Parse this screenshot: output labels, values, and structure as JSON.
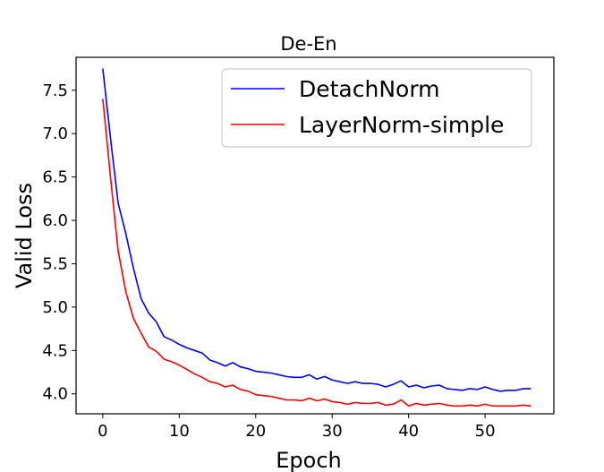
{
  "chart_data": {
    "type": "line",
    "title": "De-En",
    "xlabel": "Epoch",
    "ylabel": "Valid Loss",
    "xlim": [
      -3.5,
      59
    ],
    "ylim": [
      3.77,
      7.88
    ],
    "xticks": [
      0,
      10,
      20,
      30,
      40,
      50
    ],
    "yticks": [
      4.0,
      4.5,
      5.0,
      5.5,
      6.0,
      6.5,
      7.0,
      7.5
    ],
    "grid": false,
    "legend_position": "upper-right",
    "x": [
      0,
      1,
      2,
      3,
      4,
      5,
      6,
      7,
      8,
      9,
      10,
      11,
      12,
      13,
      14,
      15,
      16,
      17,
      18,
      19,
      20,
      21,
      22,
      23,
      24,
      25,
      26,
      27,
      28,
      29,
      30,
      31,
      32,
      33,
      34,
      35,
      36,
      37,
      38,
      39,
      40,
      41,
      42,
      43,
      44,
      45,
      46,
      47,
      48,
      49,
      50,
      51,
      52,
      53,
      54,
      55,
      56
    ],
    "series": [
      {
        "name": "DetachNorm",
        "color": "#0000ff",
        "values": [
          7.75,
          6.95,
          6.2,
          5.85,
          5.45,
          5.1,
          4.93,
          4.83,
          4.66,
          4.62,
          4.57,
          4.53,
          4.5,
          4.47,
          4.39,
          4.36,
          4.32,
          4.36,
          4.31,
          4.29,
          4.26,
          4.25,
          4.24,
          4.22,
          4.2,
          4.19,
          4.19,
          4.22,
          4.17,
          4.2,
          4.16,
          4.14,
          4.12,
          4.14,
          4.12,
          4.12,
          4.11,
          4.08,
          4.11,
          4.15,
          4.08,
          4.1,
          4.07,
          4.09,
          4.1,
          4.06,
          4.05,
          4.04,
          4.06,
          4.05,
          4.08,
          4.05,
          4.03,
          4.04,
          4.04,
          4.06,
          4.06
        ]
      },
      {
        "name": "LayerNorm-simple",
        "color": "#ff0000",
        "values": [
          7.4,
          6.5,
          5.65,
          5.18,
          4.87,
          4.7,
          4.54,
          4.49,
          4.4,
          4.37,
          4.33,
          4.28,
          4.23,
          4.19,
          4.14,
          4.12,
          4.08,
          4.1,
          4.05,
          4.03,
          3.99,
          3.98,
          3.97,
          3.95,
          3.93,
          3.93,
          3.92,
          3.95,
          3.92,
          3.94,
          3.91,
          3.9,
          3.88,
          3.9,
          3.89,
          3.89,
          3.9,
          3.87,
          3.88,
          3.93,
          3.86,
          3.89,
          3.87,
          3.88,
          3.89,
          3.87,
          3.86,
          3.86,
          3.87,
          3.86,
          3.88,
          3.86,
          3.86,
          3.86,
          3.86,
          3.87,
          3.86
        ]
      }
    ]
  }
}
